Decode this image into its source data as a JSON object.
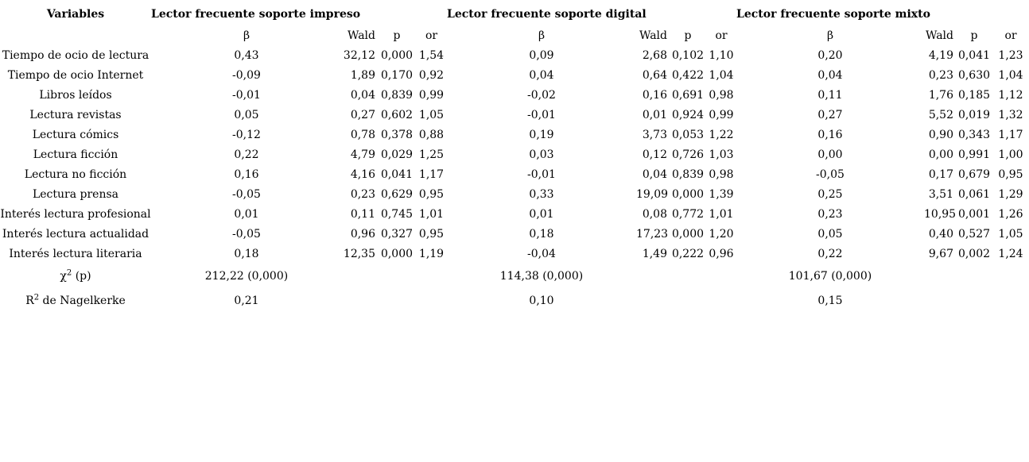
{
  "table": {
    "variables_header": "Variables",
    "groups": [
      {
        "title": "Lector frecuente soporte impreso",
        "col_headers": [
          "β",
          "Wald",
          "p",
          "or"
        ]
      },
      {
        "title": "Lector frecuente soporte digital",
        "col_headers": [
          "β",
          "Wald",
          "p",
          "or"
        ]
      },
      {
        "title": "Lector frecuente soporte mixto",
        "col_headers": [
          "β",
          "Wald",
          "p",
          "or"
        ]
      }
    ],
    "rows": [
      {
        "label": "Tiempo de ocio de lectura",
        "values": [
          [
            "0,43",
            "32,12",
            "0,000",
            "1,54"
          ],
          [
            "0,09",
            "2,68",
            "0,102",
            "1,10"
          ],
          [
            "0,20",
            "4,19",
            "0,041",
            "1,23"
          ]
        ]
      },
      {
        "label": "Tiempo de ocio Internet",
        "values": [
          [
            "-0,09",
            "1,89",
            "0,170",
            "0,92"
          ],
          [
            "0,04",
            "0,64",
            "0,422",
            "1,04"
          ],
          [
            "0,04",
            "0,23",
            "0,630",
            "1,04"
          ]
        ]
      },
      {
        "label": "Libros leídos",
        "values": [
          [
            "-0,01",
            "0,04",
            "0,839",
            "0,99"
          ],
          [
            "-0,02",
            "0,16",
            "0,691",
            "0,98"
          ],
          [
            "0,11",
            "1,76",
            "0,185",
            "1,12"
          ]
        ]
      },
      {
        "label": "Lectura revistas",
        "values": [
          [
            "0,05",
            "0,27",
            "0,602",
            "1,05"
          ],
          [
            "-0,01",
            "0,01",
            "0,924",
            "0,99"
          ],
          [
            "0,27",
            "5,52",
            "0,019",
            "1,32"
          ]
        ]
      },
      {
        "label": "Lectura cómics",
        "values": [
          [
            "-0,12",
            "0,78",
            "0,378",
            "0,88"
          ],
          [
            "0,19",
            "3,73",
            "0,053",
            "1,22"
          ],
          [
            "0,16",
            "0,90",
            "0,343",
            "1,17"
          ]
        ]
      },
      {
        "label": "Lectura ficción",
        "values": [
          [
            "0,22",
            "4,79",
            "0,029",
            "1,25"
          ],
          [
            "0,03",
            "0,12",
            "0,726",
            "1,03"
          ],
          [
            "0,00",
            "0,00",
            "0,991",
            "1,00"
          ]
        ]
      },
      {
        "label": "Lectura no ficción",
        "values": [
          [
            "0,16",
            "4,16",
            "0,041",
            "1,17"
          ],
          [
            "-0,01",
            "0,04",
            "0,839",
            "0,98"
          ],
          [
            "-0,05",
            "0,17",
            "0,679",
            "0,95"
          ]
        ]
      },
      {
        "label": "Lectura prensa",
        "values": [
          [
            "-0,05",
            "0,23",
            "0,629",
            "0,95"
          ],
          [
            "0,33",
            "19,09",
            "0,000",
            "1,39"
          ],
          [
            "0,25",
            "3,51",
            "0,061",
            "1,29"
          ]
        ]
      },
      {
        "label": "Interés lectura profesional",
        "values": [
          [
            "0,01",
            "0,11",
            "0,745",
            "1,01"
          ],
          [
            "0,01",
            "0,08",
            "0,772",
            "1,01"
          ],
          [
            "0,23",
            "10,95",
            "0,001",
            "1,26"
          ]
        ]
      },
      {
        "label": "Interés lectura actualidad",
        "values": [
          [
            "-0,05",
            "0,96",
            "0,327",
            "0,95"
          ],
          [
            "0,18",
            "17,23",
            "0,000",
            "1,20"
          ],
          [
            "0,05",
            "0,40",
            "0,527",
            "1,05"
          ]
        ]
      },
      {
        "label": "Interés lectura literaria",
        "values": [
          [
            "0,18",
            "12,35",
            "0,000",
            "1,19"
          ],
          [
            "-0,04",
            "1,49",
            "0,222",
            "0,96"
          ],
          [
            "0,22",
            "9,67",
            "0,002",
            "1,24"
          ]
        ]
      }
    ],
    "chi2": {
      "symbol": "χ",
      "sup": "2",
      "suffix": " (p)",
      "values": [
        "212,22 (0,000)",
        "114,38 (0,000)",
        "101,67 (0,000)"
      ]
    },
    "r2": {
      "symbol": "R",
      "sup": "2",
      "suffix": " de Nagelkerke",
      "values": [
        "0,21",
        "0,10",
        "0,15"
      ]
    }
  },
  "colors": {
    "text": "#000000",
    "background": "#ffffff"
  }
}
